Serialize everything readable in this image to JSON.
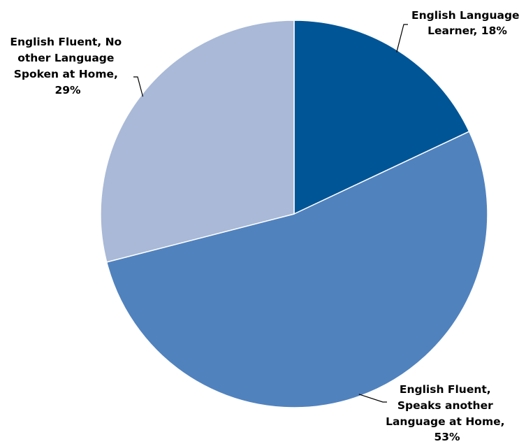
{
  "chart_data": {
    "type": "pie",
    "title": "",
    "start_angle_deg": 0,
    "direction": "clockwise",
    "slices": [
      {
        "key": "ell",
        "value": 18,
        "color": "#005596",
        "label_lines": [
          "English Language",
          "Learner, 18%"
        ]
      },
      {
        "key": "speaks_other",
        "value": 53,
        "color": "#5082be",
        "label_lines": [
          "English Fluent,",
          "Speaks another",
          "Language at Home,",
          "53%"
        ]
      },
      {
        "key": "no_other",
        "value": 29,
        "color": "#a9b9d7",
        "label_lines": [
          "English Fluent, No",
          "other Language",
          "Spoken at Home,",
          "29%"
        ]
      }
    ]
  }
}
